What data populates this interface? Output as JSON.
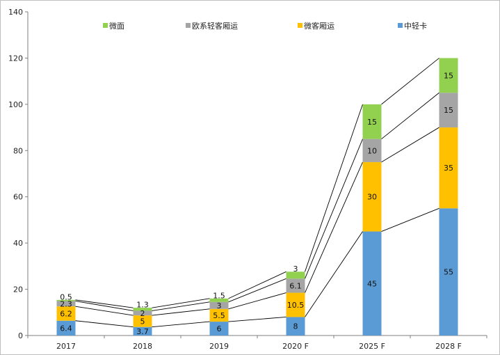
{
  "chart_data": {
    "type": "bar",
    "stacked": true,
    "connector_lines": true,
    "categories": [
      "2017",
      "2018",
      "2019",
      "2020 F",
      "2025 F",
      "2028 F"
    ],
    "series": [
      {
        "name": "中轻卡",
        "color": "#5b9bd5",
        "values": [
          6.4,
          3.7,
          6,
          8,
          45,
          55
        ]
      },
      {
        "name": "微客厢运",
        "color": "#ffc000",
        "values": [
          6.2,
          5,
          5.5,
          10.5,
          30,
          35
        ]
      },
      {
        "name": "欧系轻客厢运",
        "color": "#a5a5a5",
        "values": [
          2.3,
          2,
          3,
          6.1,
          10,
          15
        ]
      },
      {
        "name": "微面",
        "color": "#92d050",
        "values": [
          0.5,
          1.3,
          1.5,
          3,
          15,
          15
        ]
      }
    ],
    "data_labels": [
      [
        "6.4",
        "3.7",
        "6",
        "8",
        "45",
        "55"
      ],
      [
        "6.2",
        "5",
        "5.5",
        "10.5",
        "30",
        "35"
      ],
      [
        "2.3",
        "2",
        "3",
        "6.1",
        "10",
        "15"
      ],
      [
        "0.5",
        "1.3",
        "1.5",
        "3",
        "15",
        "15"
      ]
    ],
    "legend_order": [
      3,
      2,
      1,
      0
    ],
    "legend_position": "top",
    "ylim": [
      0,
      140
    ],
    "yticks": [
      "0",
      "20",
      "40",
      "60",
      "80",
      "100",
      "120",
      "140"
    ],
    "grid": false,
    "title": "",
    "xlabel": "",
    "ylabel": ""
  }
}
